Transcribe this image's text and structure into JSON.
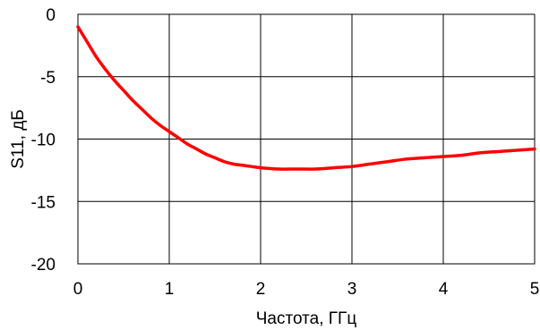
{
  "chart_data": {
    "type": "line",
    "title": "",
    "xlabel": "Частота, ГГц",
    "ylabel": "S11, дБ",
    "xlim": [
      0,
      5
    ],
    "ylim": [
      -20,
      0
    ],
    "x_ticks": [
      "0",
      "1",
      "2",
      "3",
      "4",
      "5"
    ],
    "y_ticks": [
      "0",
      "-5",
      "-10",
      "-15",
      "-20"
    ],
    "grid": true,
    "legend": "none",
    "series": [
      {
        "color": "#ff0000",
        "x": [
          0,
          0.1,
          0.2,
          0.3,
          0.4,
          0.5,
          0.6,
          0.7,
          0.8,
          0.9,
          1.0,
          1.1,
          1.2,
          1.3,
          1.4,
          1.5,
          1.6,
          1.7,
          1.8,
          1.9,
          2.0,
          2.2,
          2.4,
          2.6,
          2.8,
          3.0,
          3.2,
          3.4,
          3.6,
          3.8,
          4.0,
          4.2,
          4.4,
          4.6,
          4.8,
          5.0
        ],
        "y": [
          -1.0,
          -2.2,
          -3.4,
          -4.4,
          -5.3,
          -6.1,
          -6.9,
          -7.6,
          -8.3,
          -8.9,
          -9.4,
          -9.9,
          -10.4,
          -10.8,
          -11.2,
          -11.5,
          -11.8,
          -12.0,
          -12.1,
          -12.2,
          -12.3,
          -12.4,
          -12.4,
          -12.4,
          -12.3,
          -12.2,
          -12.0,
          -11.8,
          -11.6,
          -11.5,
          -11.4,
          -11.3,
          -11.1,
          -11.0,
          -10.9,
          -10.8
        ]
      }
    ]
  }
}
